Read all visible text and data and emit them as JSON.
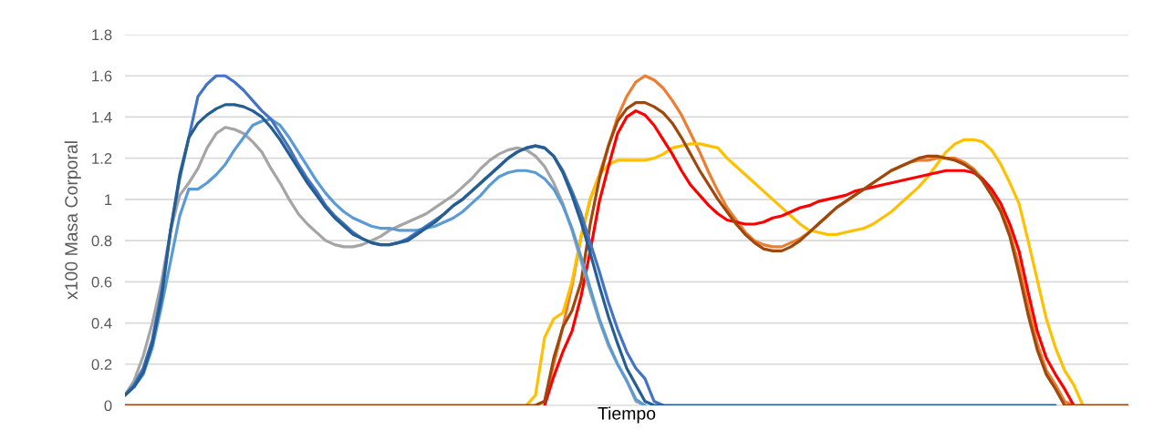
{
  "chart_data": {
    "type": "line",
    "xlabel": "Tiempo",
    "ylabel": "x100 Masa Corporal",
    "categories": [
      null,
      null,
      null,
      null,
      null,
      null,
      null,
      null,
      null,
      null,
      null,
      null,
      null,
      null,
      null,
      null,
      null,
      null,
      null,
      null,
      null,
      null,
      null,
      null,
      null,
      null,
      null,
      null,
      null,
      null,
      null,
      null,
      null,
      null,
      null,
      null,
      null,
      null,
      null,
      null,
      null,
      null,
      null,
      null,
      null,
      null,
      null,
      null,
      null,
      null,
      null,
      null,
      null,
      null,
      null,
      null,
      null,
      null,
      null,
      null,
      null,
      null,
      null,
      null,
      null,
      null,
      null,
      null,
      null,
      null,
      null,
      null,
      null,
      null,
      null,
      null,
      null,
      null,
      null,
      null,
      null,
      null,
      null,
      null,
      null,
      null,
      null,
      null,
      null,
      null,
      null,
      null,
      null,
      null,
      null,
      null,
      null,
      null,
      null,
      null,
      null,
      null,
      null,
      null,
      null,
      null,
      null,
      null,
      null,
      null,
      null
    ],
    "ylim": [
      0,
      1.8
    ],
    "yticks": [
      0,
      0.2,
      0.4,
      0.6,
      0.8,
      1,
      1.2,
      1.4,
      1.6,
      1.8
    ],
    "grid": "y",
    "tick_labels": "y",
    "marker": "none",
    "line_style": "solid",
    "series": [
      {
        "color": "#ed7d31",
        "values": [
          null,
          null,
          null,
          null,
          null,
          null,
          null,
          null,
          null,
          null,
          null,
          null,
          null,
          null,
          null,
          null,
          null,
          null,
          null,
          null,
          null,
          null,
          null,
          null,
          null,
          null,
          null,
          null,
          null,
          null,
          null,
          null,
          null,
          null,
          null,
          null,
          null,
          null,
          null,
          null,
          null,
          null,
          null,
          null,
          null,
          0,
          0.02,
          0.2,
          0.38,
          0.58,
          0.82,
          1.0,
          1.12,
          1.26,
          1.4,
          1.5,
          1.57,
          1.6,
          1.58,
          1.54,
          1.48,
          1.41,
          1.32,
          1.23,
          1.13,
          1.04,
          0.96,
          0.9,
          0.84,
          0.8,
          0.78,
          0.77,
          0.77,
          0.79,
          0.81,
          0.84,
          0.88,
          0.92,
          0.96,
          0.99,
          1.02,
          1.05,
          1.08,
          1.11,
          1.14,
          1.16,
          1.18,
          1.19,
          1.19,
          1.2,
          1.2,
          1.2,
          1.18,
          1.15,
          1.1,
          1.03,
          0.95,
          0.84,
          0.68,
          0.48,
          0.3,
          0.17,
          0.1,
          0.02,
          0,
          null,
          null,
          null,
          null,
          null,
          null
        ]
      },
      {
        "color": "#ffc000",
        "values": [
          null,
          null,
          null,
          null,
          null,
          null,
          null,
          null,
          null,
          null,
          null,
          null,
          null,
          null,
          null,
          null,
          null,
          null,
          null,
          null,
          null,
          null,
          null,
          null,
          null,
          null,
          null,
          null,
          null,
          null,
          null,
          null,
          null,
          null,
          null,
          null,
          null,
          null,
          null,
          null,
          null,
          null,
          null,
          null,
          0,
          0.05,
          0.33,
          0.42,
          0.45,
          0.6,
          0.82,
          1.0,
          1.12,
          1.17,
          1.19,
          1.19,
          1.19,
          1.19,
          1.2,
          1.22,
          1.25,
          1.26,
          1.27,
          1.27,
          1.26,
          1.25,
          1.2,
          1.16,
          1.12,
          1.08,
          1.04,
          1.0,
          0.96,
          0.92,
          0.88,
          0.85,
          0.84,
          0.83,
          0.83,
          0.84,
          0.85,
          0.86,
          0.88,
          0.91,
          0.94,
          0.98,
          1.02,
          1.06,
          1.11,
          1.17,
          1.23,
          1.27,
          1.29,
          1.29,
          1.28,
          1.24,
          1.17,
          1.08,
          0.98,
          0.8,
          0.61,
          0.42,
          0.28,
          0.17,
          0.1,
          0,
          null,
          null,
          null,
          null,
          null
        ]
      },
      {
        "color": "#ff0000",
        "values": [
          null,
          null,
          null,
          null,
          null,
          null,
          null,
          null,
          null,
          null,
          null,
          null,
          null,
          null,
          null,
          null,
          null,
          null,
          null,
          null,
          null,
          null,
          null,
          null,
          null,
          null,
          null,
          null,
          null,
          null,
          null,
          null,
          null,
          null,
          null,
          null,
          null,
          null,
          null,
          null,
          null,
          null,
          null,
          null,
          null,
          null,
          0,
          0.14,
          0.26,
          0.36,
          0.53,
          0.75,
          0.99,
          1.16,
          1.32,
          1.4,
          1.43,
          1.41,
          1.36,
          1.29,
          1.22,
          1.14,
          1.07,
          1.02,
          0.97,
          0.93,
          0.9,
          0.89,
          0.88,
          0.88,
          0.89,
          0.91,
          0.92,
          0.94,
          0.96,
          0.97,
          0.99,
          1.0,
          1.01,
          1.02,
          1.04,
          1.05,
          1.06,
          1.07,
          1.08,
          1.09,
          1.1,
          1.11,
          1.12,
          1.13,
          1.14,
          1.14,
          1.14,
          1.13,
          1.1,
          1.05,
          0.98,
          0.88,
          0.75,
          0.55,
          0.36,
          0.23,
          0.15,
          0.08,
          0,
          null,
          null,
          null,
          null,
          null,
          null
        ]
      },
      {
        "color": "#9e480e",
        "values": [
          0,
          0,
          0,
          0,
          0,
          0,
          0,
          0,
          0,
          0,
          0,
          0,
          0,
          0,
          0,
          0,
          0,
          0,
          0,
          0,
          0,
          0,
          0,
          0,
          0,
          0,
          0,
          0,
          0,
          0,
          0,
          0,
          0,
          0,
          0,
          0,
          0,
          0,
          0,
          0,
          0,
          0,
          0,
          0,
          0,
          0,
          0.02,
          0.23,
          0.38,
          0.46,
          0.6,
          0.88,
          1.1,
          1.26,
          1.38,
          1.44,
          1.47,
          1.47,
          1.45,
          1.42,
          1.37,
          1.3,
          1.22,
          1.14,
          1.07,
          1.0,
          0.94,
          0.88,
          0.83,
          0.79,
          0.76,
          0.75,
          0.75,
          0.77,
          0.8,
          0.84,
          0.88,
          0.92,
          0.96,
          0.99,
          1.02,
          1.05,
          1.08,
          1.11,
          1.14,
          1.16,
          1.18,
          1.2,
          1.21,
          1.21,
          1.2,
          1.19,
          1.17,
          1.14,
          1.09,
          1.02,
          0.94,
          0.82,
          0.64,
          0.44,
          0.27,
          0.15,
          0.08,
          0,
          0,
          0,
          0,
          0,
          0,
          0,
          0
        ]
      },
      {
        "color": "#a5a5a5",
        "values": [
          0.05,
          0.12,
          0.24,
          0.4,
          0.6,
          0.85,
          1.02,
          1.08,
          1.15,
          1.25,
          1.32,
          1.35,
          1.34,
          1.32,
          1.28,
          1.23,
          1.15,
          1.08,
          1.0,
          0.93,
          0.88,
          0.84,
          0.8,
          0.78,
          0.77,
          0.77,
          0.78,
          0.8,
          0.82,
          0.85,
          0.87,
          0.89,
          0.91,
          0.93,
          0.96,
          0.99,
          1.02,
          1.06,
          1.1,
          1.15,
          1.19,
          1.22,
          1.24,
          1.25,
          1.24,
          1.21,
          1.16,
          1.08,
          0.98,
          0.85,
          0.7,
          0.55,
          0.41,
          0.29,
          0.2,
          0.12,
          0.02,
          0,
          null,
          null,
          null,
          null,
          null,
          null,
          null,
          null,
          null,
          null,
          null,
          null,
          null,
          null,
          null,
          null,
          null,
          null,
          null,
          null,
          null,
          null,
          null,
          null,
          null,
          null,
          null,
          null,
          null,
          null,
          null,
          null,
          null,
          null,
          null,
          null,
          null,
          null,
          null,
          null,
          null,
          null,
          null,
          null,
          null,
          null,
          null,
          null,
          null,
          null,
          null,
          null,
          null
        ]
      },
      {
        "color": "#5b9bd5",
        "values": [
          0.05,
          0.09,
          0.15,
          0.28,
          0.48,
          0.7,
          0.92,
          1.05,
          1.05,
          1.08,
          1.12,
          1.17,
          1.24,
          1.3,
          1.36,
          1.38,
          1.39,
          1.36,
          1.3,
          1.23,
          1.16,
          1.09,
          1.03,
          0.98,
          0.94,
          0.91,
          0.89,
          0.87,
          0.86,
          0.86,
          0.85,
          0.85,
          0.85,
          0.86,
          0.87,
          0.89,
          0.91,
          0.94,
          0.98,
          1.02,
          1.07,
          1.11,
          1.13,
          1.14,
          1.14,
          1.13,
          1.1,
          1.05,
          0.97,
          0.86,
          0.72,
          0.57,
          0.42,
          0.3,
          0.2,
          0.12,
          0.03,
          0,
          null,
          null,
          null,
          null,
          null,
          null,
          null,
          null,
          null,
          null,
          null,
          null,
          null,
          null,
          null,
          null,
          null,
          null,
          null,
          null,
          null,
          null,
          null,
          null,
          null,
          null,
          null,
          null,
          null,
          null,
          null,
          null,
          null,
          null,
          null,
          null,
          null,
          null,
          null,
          null,
          null,
          null,
          null,
          null,
          null,
          null,
          null,
          null,
          null,
          null,
          null,
          null,
          null
        ]
      },
      {
        "color": "#4472c4",
        "values": [
          0.05,
          0.1,
          0.18,
          0.32,
          0.55,
          0.85,
          1.1,
          1.3,
          1.5,
          1.56,
          1.6,
          1.6,
          1.57,
          1.53,
          1.48,
          1.43,
          1.39,
          1.32,
          1.25,
          1.17,
          1.1,
          1.04,
          0.97,
          0.92,
          0.88,
          0.84,
          0.81,
          0.79,
          0.78,
          0.78,
          0.79,
          0.81,
          0.84,
          0.87,
          0.9,
          0.93,
          0.97,
          1.0,
          1.04,
          1.08,
          1.12,
          1.16,
          1.2,
          1.23,
          1.25,
          1.26,
          1.25,
          1.21,
          1.14,
          1.04,
          0.93,
          0.79,
          0.65,
          0.5,
          0.37,
          0.26,
          0.18,
          0.13,
          0.02,
          0,
          null,
          null,
          null,
          null,
          null,
          null,
          null,
          null,
          null,
          null,
          null,
          null,
          null,
          null,
          null,
          null,
          null,
          null,
          null,
          null,
          null,
          null,
          null,
          null,
          null,
          null,
          null,
          null,
          null,
          null,
          null,
          null,
          null,
          null,
          null,
          null,
          null,
          null,
          null,
          null,
          null,
          null,
          null,
          null,
          null,
          null,
          null,
          null,
          null,
          null,
          null
        ]
      },
      {
        "color": "#255e91",
        "values": [
          0.05,
          0.09,
          0.16,
          0.3,
          0.52,
          0.85,
          1.12,
          1.3,
          1.37,
          1.41,
          1.44,
          1.46,
          1.46,
          1.45,
          1.43,
          1.4,
          1.35,
          1.29,
          1.22,
          1.15,
          1.08,
          1.02,
          0.96,
          0.91,
          0.87,
          0.83,
          0.81,
          0.79,
          0.78,
          0.78,
          0.79,
          0.8,
          0.83,
          0.86,
          0.89,
          0.93,
          0.97,
          1.0,
          1.04,
          1.08,
          1.12,
          1.16,
          1.2,
          1.23,
          1.25,
          1.26,
          1.25,
          1.21,
          1.13,
          1.02,
          0.89,
          0.74,
          0.58,
          0.43,
          0.3,
          0.18,
          0.1,
          0.02,
          0,
          0,
          0,
          0,
          0,
          0,
          0,
          0,
          0,
          0,
          0,
          0,
          0,
          0,
          0,
          0,
          0,
          0,
          0,
          0,
          0,
          0,
          0,
          0,
          0,
          0,
          0,
          0,
          0,
          0,
          0,
          0,
          0,
          0,
          0,
          0,
          0,
          0,
          0,
          0,
          0,
          0,
          0,
          0,
          0,
          null,
          null,
          null,
          null,
          null,
          null,
          null,
          null
        ]
      }
    ]
  }
}
